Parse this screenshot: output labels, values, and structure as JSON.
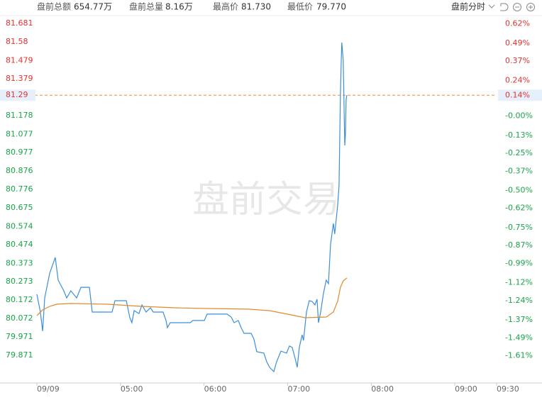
{
  "header": {
    "items": [
      {
        "label": "盘前总额",
        "value": "654.77万"
      },
      {
        "label": "盘前总量",
        "value": "8.16万"
      },
      {
        "label": "最高价",
        "value": "81.730"
      },
      {
        "label": "最低价",
        "value": "79.770"
      }
    ],
    "mode": "盘前分时"
  },
  "chart_data": {
    "type": "line",
    "watermark": "盘前交易",
    "xlim": [
      0,
      330
    ],
    "xticks": [
      {
        "value": 0,
        "label": "09/09"
      },
      {
        "value": 60,
        "label": "05:00"
      },
      {
        "value": 120,
        "label": "06:00"
      },
      {
        "value": 180,
        "label": "07:00"
      },
      {
        "value": 240,
        "label": "08:00"
      },
      {
        "value": 300,
        "label": "09:00"
      },
      {
        "value": 330,
        "label": "09:30"
      }
    ],
    "ylim": [
      79.728,
      81.724
    ],
    "yticks": [
      81.681,
      81.58,
      81.479,
      81.379,
      81.29,
      81.178,
      81.077,
      80.977,
      80.876,
      80.776,
      80.675,
      80.574,
      80.474,
      80.373,
      80.273,
      80.172,
      80.072,
      79.971,
      79.871
    ],
    "y2lim": [
      -1.784,
      0.675
    ],
    "y2ticks": [
      {
        "value": 0.62,
        "label": "0.62%"
      },
      {
        "value": 0.49,
        "label": "0.49%"
      },
      {
        "value": 0.37,
        "label": "0.37%"
      },
      {
        "value": 0.24,
        "label": "0.24%"
      },
      {
        "value": 0.14,
        "label": "0.14%"
      },
      {
        "value": 0,
        "label": "-0.00%"
      },
      {
        "value": -0.13,
        "label": "-0.13%"
      },
      {
        "value": -0.25,
        "label": "-0.25%"
      },
      {
        "value": -0.37,
        "label": "-0.37%"
      },
      {
        "value": -0.5,
        "label": "-0.50%"
      },
      {
        "value": -0.62,
        "label": "-0.62%"
      },
      {
        "value": -0.75,
        "label": "-0.75%"
      },
      {
        "value": -0.87,
        "label": "-0.87%"
      },
      {
        "value": -0.99,
        "label": "-0.99%"
      },
      {
        "value": -1.12,
        "label": "-1.12%"
      },
      {
        "value": -1.24,
        "label": "-1.24%"
      },
      {
        "value": -1.37,
        "label": "-1.37%"
      },
      {
        "value": -1.49,
        "label": "-1.49%"
      },
      {
        "value": -1.61,
        "label": "-1.61%"
      }
    ],
    "last_price": 81.29,
    "last_price_color": "#f08a3c",
    "up_color": "#e5312f",
    "down_color": "#1aa34a",
    "series": [
      {
        "color": "#3b8fd9",
        "x": [
          0,
          2.5,
          4.1,
          5.6,
          9.2,
          13.2,
          15.3,
          19.3,
          21.4,
          24.4,
          28.5,
          31.6,
          37.7,
          39.7,
          54.0,
          56.0,
          64.2,
          66.7,
          68.2,
          69.8,
          73.3,
          75.4,
          78.4,
          81.5,
          83.5,
          90.6,
          92.7,
          93.7,
          95.7,
          110.0,
          112.0,
          120.2,
          122.2,
          136.5,
          139.5,
          141.5,
          144.6,
          146.6,
          148.7,
          153.8,
          155.8,
          157.8,
          162.9,
          165.0,
          167.0,
          170.1,
          172.1,
          175.2,
          179.2,
          181.3,
          183.3,
          185.3,
          186.9,
          188.4,
          190.4,
          191.4,
          193.5,
          195.5,
          197.6,
          199.6,
          201.1,
          202.1,
          203.7,
          205.7,
          207.7,
          209.3,
          210.8,
          212.8,
          213.8,
          215.9,
          216.9,
          217.9,
          218.4,
          218.9,
          219.9,
          221.0,
          221.5,
          222.0,
          222.5
        ],
        "values": [
          80.204,
          80.107,
          80.003,
          80.184,
          80.32,
          80.405,
          80.281,
          80.223,
          80.184,
          80.223,
          80.184,
          80.242,
          80.242,
          80.107,
          80.107,
          80.169,
          80.169,
          80.076,
          80.049,
          80.115,
          80.099,
          80.146,
          80.107,
          80.13,
          80.107,
          80.107,
          80.061,
          80.022,
          80.049,
          80.049,
          80.061,
          80.061,
          80.096,
          80.096,
          80.08,
          80.049,
          80.061,
          80.022,
          79.991,
          79.991,
          79.96,
          79.891,
          79.883,
          79.836,
          79.806,
          79.782,
          79.836,
          79.894,
          79.883,
          79.922,
          79.914,
          79.856,
          79.806,
          79.914,
          79.983,
          79.952,
          80.107,
          80.169,
          80.165,
          80.146,
          80.177,
          80.049,
          80.107,
          80.208,
          80.281,
          80.262,
          80.474,
          80.591,
          80.533,
          80.687,
          80.795,
          81.306,
          81.461,
          81.577,
          81.48,
          81.016,
          81.074,
          81.267,
          81.29
        ]
      },
      {
        "color": "#e08a2c",
        "x": [
          0,
          4.1,
          9.2,
          14.3,
          24.4,
          49.9,
          75.4,
          100.9,
          126.4,
          151.9,
          167.0,
          182.3,
          192.5,
          207.7,
          212.8,
          215.9,
          217.9,
          219.9,
          222.5
        ],
        "values": [
          80.088,
          80.119,
          80.138,
          80.15,
          80.154,
          80.15,
          80.138,
          80.13,
          80.126,
          80.123,
          80.115,
          80.092,
          80.076,
          80.08,
          80.107,
          80.165,
          80.242,
          80.277,
          80.293
        ]
      }
    ]
  }
}
